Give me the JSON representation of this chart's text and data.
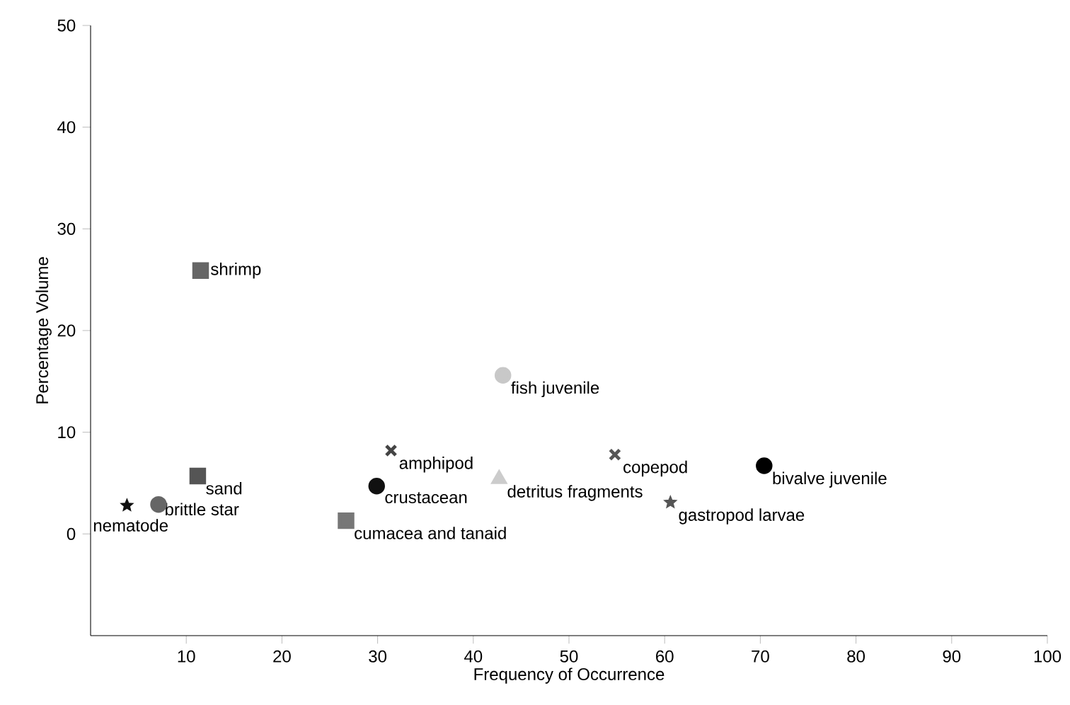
{
  "chart_data": {
    "type": "scatter",
    "xlabel": "Frequency of Occurrence",
    "ylabel": "Percentage Volume",
    "xlim": [
      0,
      100
    ],
    "ylim": [
      -10,
      50
    ],
    "xticks": [
      10,
      20,
      30,
      40,
      50,
      60,
      70,
      80,
      90,
      100
    ],
    "yticks": [
      0,
      10,
      20,
      30,
      40,
      50
    ],
    "grid": false,
    "legend": false,
    "series": [
      {
        "name": "shrimp",
        "color": "#666666",
        "marker": "square",
        "x": [
          11.5
        ],
        "values": [
          25.9
        ]
      },
      {
        "name": "fish juvenile",
        "color": "#c8c8c8",
        "marker": "circle",
        "x": [
          43.1
        ],
        "values": [
          15.6
        ]
      },
      {
        "name": "amphipod",
        "color": "#444444",
        "marker": "cross",
        "x": [
          31.4
        ],
        "values": [
          8.2
        ]
      },
      {
        "name": "crustacean",
        "color": "#111111",
        "marker": "circle",
        "x": [
          29.9
        ],
        "values": [
          4.7
        ]
      },
      {
        "name": "cumacea  and tanaid",
        "color": "#777777",
        "marker": "square",
        "x": [
          26.7
        ],
        "values": [
          1.3
        ]
      },
      {
        "name": "detritus fragments",
        "color": "#cccccc",
        "marker": "triangle",
        "x": [
          42.7
        ],
        "values": [
          5.4
        ]
      },
      {
        "name": "copepod",
        "color": "#555555",
        "marker": "cross",
        "x": [
          54.8
        ],
        "values": [
          7.8
        ]
      },
      {
        "name": "gastropod larvae",
        "color": "#555555",
        "marker": "star",
        "x": [
          60.6
        ],
        "values": [
          3.1
        ]
      },
      {
        "name": "bivalve juvenile",
        "color": "#000000",
        "marker": "circle",
        "x": [
          70.4
        ],
        "values": [
          6.7
        ]
      },
      {
        "name": "sand",
        "color": "#555555",
        "marker": "square",
        "x": [
          11.2
        ],
        "values": [
          5.7
        ]
      },
      {
        "name": "brittle star",
        "color": "#666666",
        "marker": "circle",
        "x": [
          7.1
        ],
        "values": [
          2.9
        ]
      },
      {
        "name": "nematode",
        "color": "#111111",
        "marker": "star",
        "x": [
          3.8
        ],
        "values": [
          2.8
        ]
      }
    ]
  }
}
